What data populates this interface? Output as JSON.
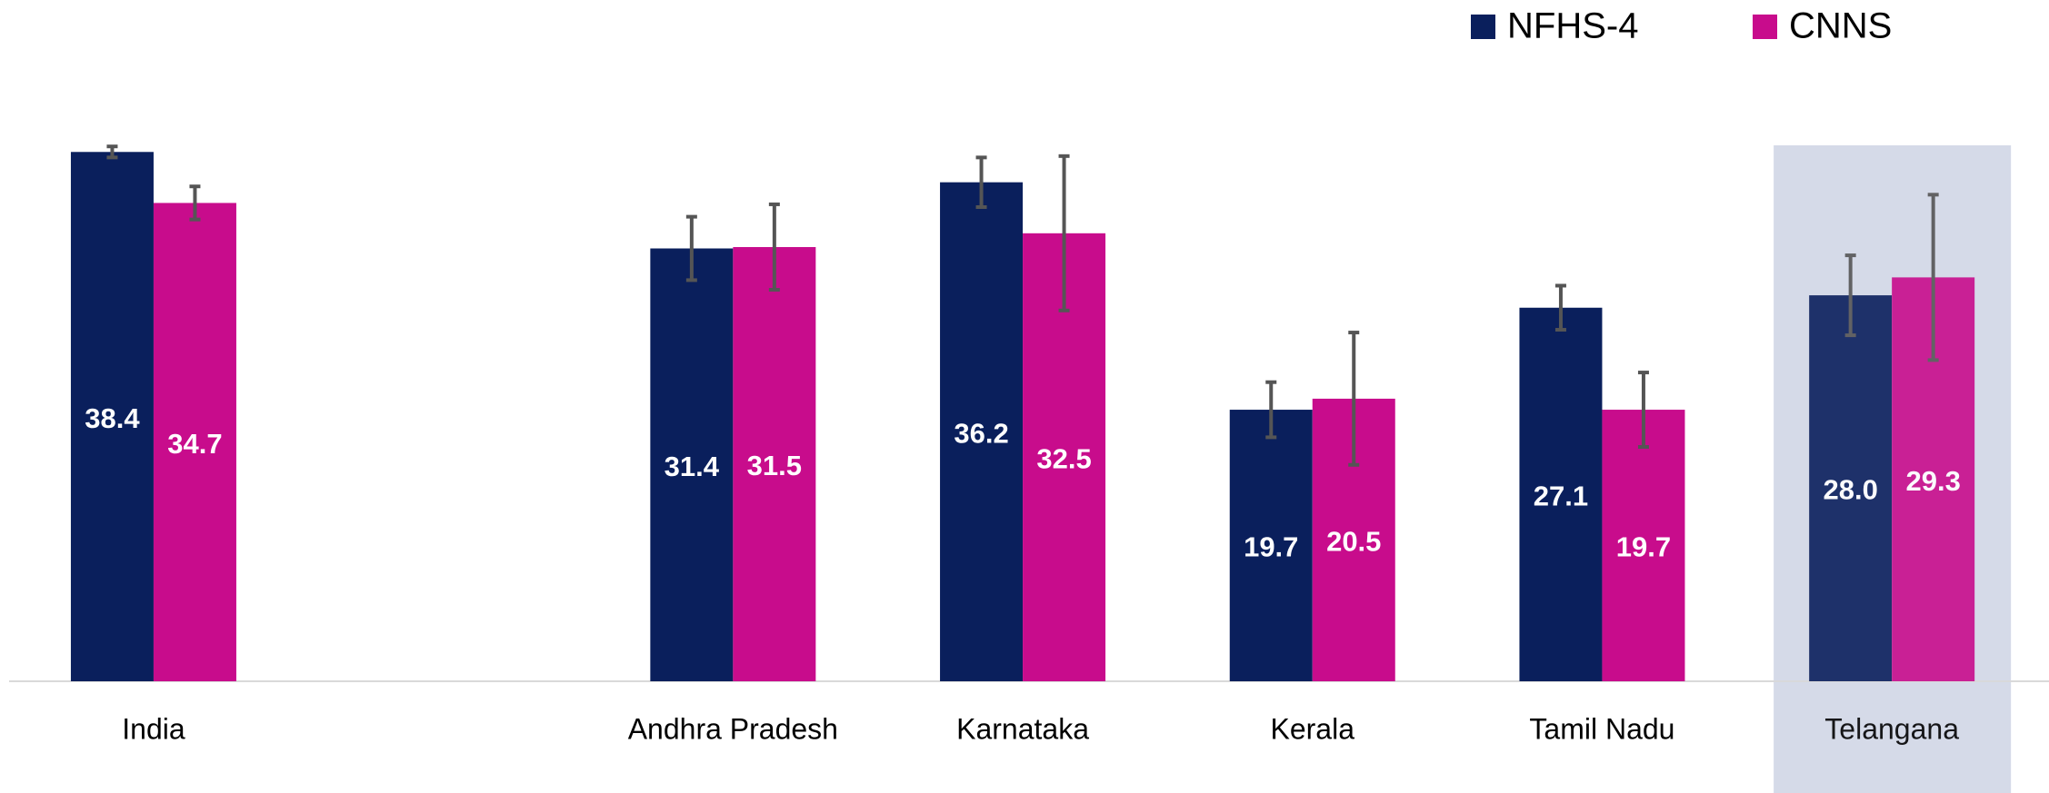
{
  "chart_data": {
    "type": "bar",
    "categories": [
      "India",
      null,
      "Andhra Pradesh",
      "Karnataka",
      "Kerala",
      "Tamil Nadu",
      "Telangana"
    ],
    "series": [
      {
        "name": "NFHS-4",
        "color": "#0a1f5c",
        "values": [
          38.4,
          null,
          31.4,
          36.2,
          19.7,
          27.1,
          28
        ],
        "value_labels": [
          "38.4",
          null,
          "31.4",
          "36.2",
          "19.7",
          "27.1",
          "28.0"
        ],
        "errors": [
          0.4,
          null,
          2.3,
          1.8,
          2.0,
          1.6,
          2.9
        ]
      },
      {
        "name": "CNNS",
        "color": "#c80c8c",
        "values": [
          34.7,
          null,
          31.5,
          32.5,
          20.5,
          19.7,
          29.3
        ],
        "value_labels": [
          "34.7",
          null,
          "31.5",
          "32.5",
          "20.5",
          "19.7",
          "29.3"
        ],
        "errors": [
          1.2,
          null,
          3.1,
          5.6,
          4.8,
          2.7,
          6.0
        ]
      }
    ],
    "ylim": [
      0,
      40
    ],
    "highlight": "Telangana",
    "legend": "top-right"
  }
}
